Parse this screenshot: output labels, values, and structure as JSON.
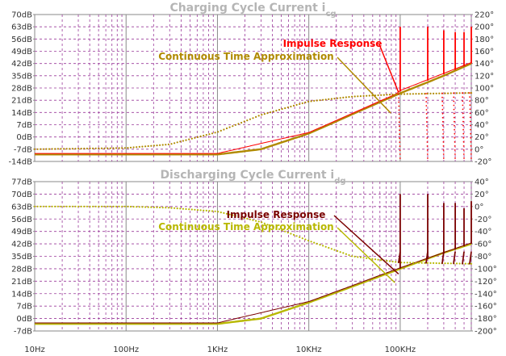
{
  "chart_data": [
    {
      "type": "line",
      "title": "Charging Cycle Current",
      "title_subscript": "cg",
      "x_scale": "log",
      "x_range_hz": [
        10,
        600000
      ],
      "y_left_range_db": [
        -14,
        70
      ],
      "y_right_range_deg": [
        -20,
        220
      ],
      "y_left_ticks": [
        "70dB",
        "63dB",
        "56dB",
        "49dB",
        "42dB",
        "35dB",
        "28dB",
        "21dB",
        "14dB",
        "7dB",
        "0dB",
        "-7dB",
        "-14dB"
      ],
      "y_right_ticks": [
        "220°",
        "200°",
        "180°",
        "160°",
        "140°",
        "120°",
        "100°",
        "80°",
        "60°",
        "40°",
        "20°",
        "0°",
        "-20°"
      ],
      "annotations": [
        {
          "text": "Impulse Response",
          "color": "#ff0000"
        },
        {
          "text": "Continuous Time Approximation",
          "color": "#b08a00"
        }
      ],
      "series": [
        {
          "name": "Continuous Time Approximation",
          "color": "#b08a00",
          "magnitude_db": [
            [
              10,
              -10
            ],
            [
              100,
              -10
            ],
            [
              1000,
              -10
            ],
            [
              3000,
              -7
            ],
            [
              10000,
              2
            ],
            [
              30000,
              13
            ],
            [
              100000,
              25
            ],
            [
              300000,
              35
            ],
            [
              600000,
              42
            ]
          ],
          "phase_deg": [
            [
              10,
              0
            ],
            [
              100,
              2
            ],
            [
              300,
              8
            ],
            [
              1000,
              28
            ],
            [
              3000,
              56
            ],
            [
              10000,
              78
            ],
            [
              30000,
              86
            ],
            [
              100000,
              90
            ],
            [
              600000,
              92
            ]
          ]
        },
        {
          "name": "Impulse Response",
          "color": "#ff0000",
          "magnitude_db": [
            [
              10,
              -10
            ],
            [
              1000,
              -10
            ],
            [
              10000,
              2
            ],
            [
              30000,
              13
            ],
            [
              90000,
              24
            ],
            [
              100000,
              26
            ],
            [
              600000,
              42
            ]
          ],
          "spikes_khz": [
            100,
            200,
            300,
            400,
            500,
            600
          ],
          "spike_top_db": [
            63,
            63,
            61,
            60,
            60,
            63
          ]
        }
      ]
    },
    {
      "type": "line",
      "title": "Discharging Cycle Current",
      "title_subscript": "dg",
      "x_scale": "log",
      "x_range_hz": [
        10,
        600000
      ],
      "y_left_range_db": [
        -7,
        77
      ],
      "y_right_range_deg": [
        -200,
        40
      ],
      "y_left_ticks": [
        "77dB",
        "70dB",
        "63dB",
        "56dB",
        "49dB",
        "42dB",
        "35dB",
        "28dB",
        "21dB",
        "14dB",
        "7dB",
        "0dB",
        "-7dB"
      ],
      "y_right_ticks": [
        "40°",
        "20°",
        "0°",
        "-20°",
        "-40°",
        "-60°",
        "-80°",
        "-100°",
        "-120°",
        "-140°",
        "-160°",
        "-180°",
        "-200°"
      ],
      "x_ticks": [
        "10Hz",
        "100Hz",
        "1KHz",
        "10KHz",
        "100KHz"
      ],
      "annotations": [
        {
          "text": "Impulse Response",
          "color": "#7a0000"
        },
        {
          "text": "Continuous Time Approximation",
          "color": "#b8b800"
        }
      ],
      "series": [
        {
          "name": "Continuous Time Approximation",
          "color": "#b8b800",
          "magnitude_db": [
            [
              10,
              -3
            ],
            [
              100,
              -3
            ],
            [
              1000,
              -3
            ],
            [
              3000,
              0
            ],
            [
              10000,
              9
            ],
            [
              30000,
              18
            ],
            [
              100000,
              28
            ],
            [
              300000,
              37
            ],
            [
              600000,
              42
            ]
          ],
          "phase_deg": [
            [
              10,
              0
            ],
            [
              100,
              0
            ],
            [
              300,
              -2
            ],
            [
              1000,
              -8
            ],
            [
              3000,
              -25
            ],
            [
              10000,
              -55
            ],
            [
              30000,
              -80
            ],
            [
              100000,
              -90
            ],
            [
              600000,
              -92
            ]
          ]
        },
        {
          "name": "Impulse Response",
          "color": "#7a0000",
          "magnitude_db": [
            [
              10,
              -3
            ],
            [
              1000,
              -3
            ],
            [
              10000,
              9
            ],
            [
              30000,
              18
            ],
            [
              100000,
              28
            ],
            [
              600000,
              42
            ]
          ],
          "spikes_khz": [
            100,
            200,
            300,
            400,
            500,
            600
          ],
          "spike_top_db": [
            70,
            70,
            65,
            65,
            62,
            66
          ]
        }
      ]
    }
  ]
}
